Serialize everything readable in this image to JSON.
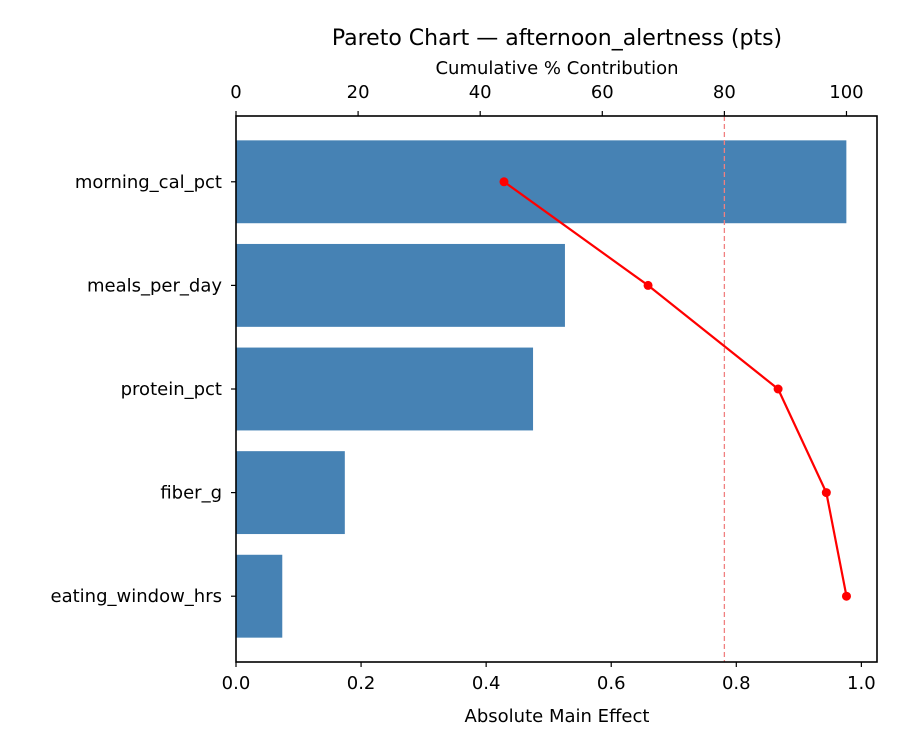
{
  "chart_data": {
    "type": "bar",
    "orientation": "horizontal",
    "title": "Pareto Chart — afternoon_alertness (pts)",
    "xlabel": "Absolute Main Effect",
    "x2label": "Cumulative % Contribution",
    "categories": [
      "morning_cal_pct",
      "meals_per_day",
      "protein_pct",
      "fiber_g",
      "eating_window_hrs"
    ],
    "values": [
      0.976,
      0.526,
      0.475,
      0.174,
      0.074
    ],
    "cumulative_pct": [
      43.9,
      67.5,
      88.8,
      96.7,
      100.0
    ],
    "threshold_pct": 80,
    "xlim": [
      0,
      1.025
    ],
    "x2lim": [
      0,
      105
    ],
    "xticks": [
      "0.0",
      "0.2",
      "0.4",
      "0.6",
      "0.8",
      "1.0"
    ],
    "x2ticks": [
      "0",
      "20",
      "40",
      "60",
      "80",
      "100"
    ],
    "grid": false,
    "colors": {
      "bar": "#4682b4",
      "cumulative": "#ff0000",
      "threshold": "#f08080"
    }
  }
}
